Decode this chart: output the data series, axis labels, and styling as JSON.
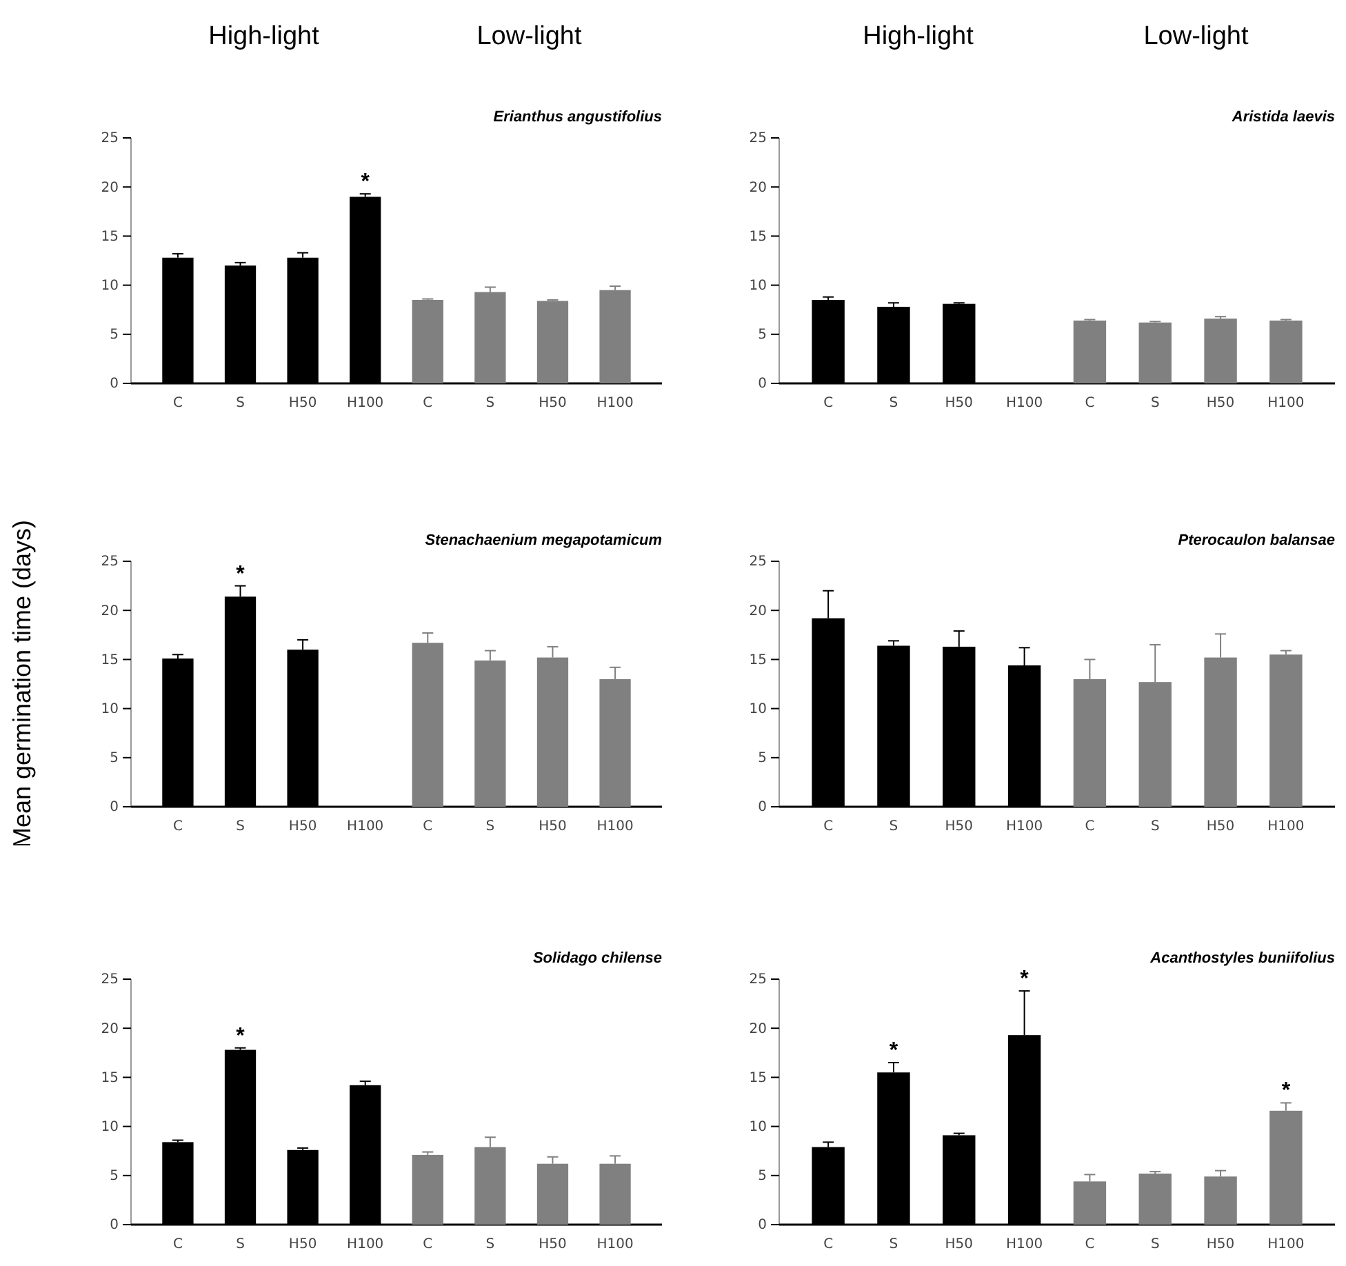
{
  "chart_data": [
    {
      "type": "bar",
      "title": "Erianthus angustifolius",
      "annotations": [
        "High-light",
        "Low-light"
      ],
      "categories": [
        "C",
        "S",
        "H50",
        "H100",
        "C",
        "S",
        "H50",
        "H100"
      ],
      "values": [
        12.8,
        12.0,
        12.8,
        19.0,
        8.5,
        9.3,
        8.4,
        9.5
      ],
      "errors": [
        0.4,
        0.3,
        0.5,
        0.3,
        0.1,
        0.5,
        0.1,
        0.4
      ],
      "value_labels": [
        null,
        null,
        null,
        "*",
        null,
        null,
        null,
        null
      ],
      "colors": [
        "#000000",
        "#000000",
        "#000000",
        "#000000",
        "#808080",
        "#808080",
        "#808080",
        "#808080"
      ],
      "ylim": [
        0,
        25
      ],
      "yticks": [
        0,
        5,
        10,
        15,
        20,
        25
      ]
    },
    {
      "type": "bar",
      "title": "Aristida laevis",
      "annotations": [
        "High-light",
        "Low-light"
      ],
      "categories": [
        "C",
        "S",
        "H50",
        "H100",
        "C",
        "S",
        "H50",
        "H100"
      ],
      "values": [
        8.5,
        7.8,
        8.1,
        null,
        6.4,
        6.2,
        6.6,
        6.4
      ],
      "errors": [
        0.3,
        0.4,
        0.1,
        null,
        0.1,
        0.1,
        0.2,
        0.1
      ],
      "colors": [
        "#000000",
        "#000000",
        "#000000",
        null,
        "#808080",
        "#808080",
        "#808080",
        "#808080"
      ],
      "ylim": [
        0,
        25
      ],
      "yticks": [
        0,
        5,
        10,
        15,
        20,
        25
      ]
    },
    {
      "type": "bar",
      "title": "Stenachaenium megapotamicum",
      "ylabel": "Mean germination time (days)",
      "categories": [
        "C",
        "S",
        "H50",
        "H100",
        "C",
        "S",
        "H50",
        "H100"
      ],
      "values": [
        15.1,
        21.4,
        16.0,
        null,
        16.7,
        14.9,
        15.2,
        13.0
      ],
      "errors": [
        0.4,
        1.1,
        1.0,
        null,
        1.0,
        1.0,
        1.1,
        1.2
      ],
      "value_labels": [
        null,
        "*",
        null,
        null,
        null,
        null,
        null,
        null
      ],
      "colors": [
        "#000000",
        "#000000",
        "#000000",
        null,
        "#808080",
        "#808080",
        "#808080",
        "#808080"
      ],
      "ylim": [
        0,
        25
      ],
      "yticks": [
        0,
        5,
        10,
        15,
        20,
        25
      ]
    },
    {
      "type": "bar",
      "title": "Pterocaulon balansae",
      "categories": [
        "C",
        "S",
        "H50",
        "H100",
        "C",
        "S",
        "H50",
        "H100"
      ],
      "values": [
        19.2,
        16.4,
        16.3,
        14.4,
        13.0,
        12.7,
        15.2,
        15.5
      ],
      "errors": [
        2.8,
        0.5,
        1.6,
        1.8,
        2.0,
        3.8,
        2.4,
        0.4
      ],
      "colors": [
        "#000000",
        "#000000",
        "#000000",
        "#000000",
        "#808080",
        "#808080",
        "#808080",
        "#808080"
      ],
      "ylim": [
        0,
        25
      ],
      "yticks": [
        0,
        5,
        10,
        15,
        20,
        25
      ]
    },
    {
      "type": "bar",
      "title": "Solidago chilense",
      "categories": [
        "C",
        "S",
        "H50",
        "H100",
        "C",
        "S",
        "H50",
        "H100"
      ],
      "values": [
        8.4,
        17.8,
        7.6,
        14.2,
        7.1,
        7.9,
        6.2,
        6.2
      ],
      "errors": [
        0.2,
        0.2,
        0.2,
        0.4,
        0.3,
        1.0,
        0.7,
        0.8
      ],
      "value_labels": [
        null,
        "*",
        null,
        null,
        null,
        null,
        null,
        null
      ],
      "colors": [
        "#000000",
        "#000000",
        "#000000",
        "#000000",
        "#808080",
        "#808080",
        "#808080",
        "#808080"
      ],
      "ylim": [
        0,
        25
      ],
      "yticks": [
        0,
        5,
        10,
        15,
        20,
        25
      ]
    },
    {
      "type": "bar",
      "title": "Acanthostyles buniifolius",
      "categories": [
        "C",
        "S",
        "H50",
        "H100",
        "C",
        "S",
        "H50",
        "H100"
      ],
      "values": [
        7.9,
        15.5,
        9.1,
        19.3,
        4.4,
        5.2,
        4.9,
        11.6
      ],
      "errors": [
        0.5,
        1.0,
        0.2,
        4.5,
        0.7,
        0.2,
        0.6,
        0.8
      ],
      "value_labels": [
        null,
        "*",
        null,
        "*",
        null,
        null,
        null,
        "*"
      ],
      "colors": [
        "#000000",
        "#000000",
        "#000000",
        "#000000",
        "#808080",
        "#808080",
        "#808080",
        "#808080"
      ],
      "ylim": [
        0,
        25
      ],
      "yticks": [
        0,
        5,
        10,
        15,
        20,
        25
      ]
    }
  ]
}
